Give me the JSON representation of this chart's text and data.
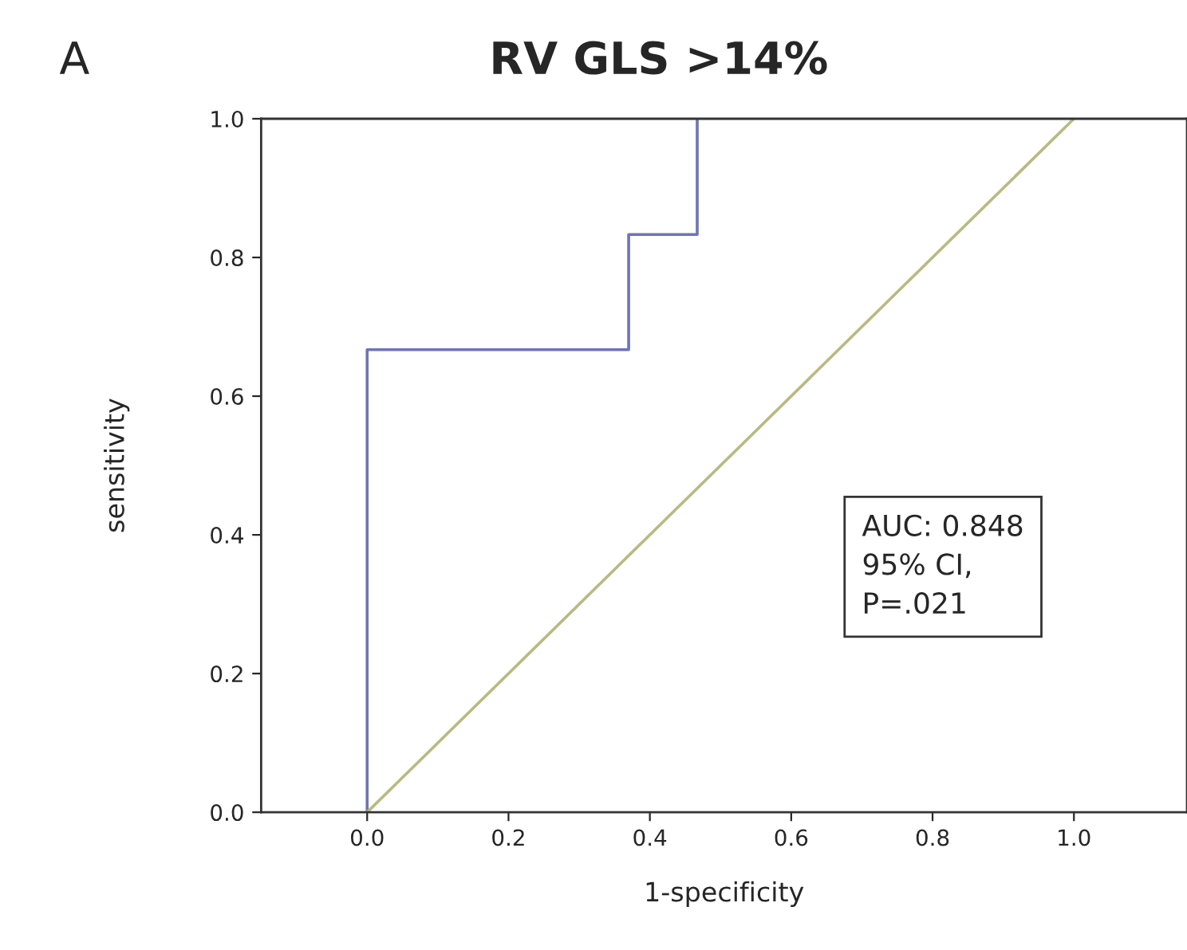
{
  "chart_data": {
    "type": "line",
    "title": "RV GLS >14%",
    "xlabel": "1-specificity",
    "ylabel": "sensitivity",
    "series": [
      {
        "x": [
          0,
          0,
          0.37,
          0.37,
          0.467,
          0.467
        ],
        "values": [
          0,
          0.667,
          0.667,
          0.833,
          0.833,
          1.0
        ],
        "color": "#6f73b8"
      },
      {
        "x": [
          0,
          1
        ],
        "values": [
          0,
          1
        ],
        "color": "#b8ba82"
      }
    ],
    "xlim": [
      -0.15,
      1.16
    ],
    "ylim": [
      0,
      1
    ],
    "xticks": [
      {
        "value": 0,
        "label": "0.0"
      },
      {
        "value": 0.2,
        "label": "0.2"
      },
      {
        "value": 0.4,
        "label": "0.4"
      },
      {
        "value": 0.6,
        "label": "0.6"
      },
      {
        "value": 0.8,
        "label": "0.8"
      },
      {
        "value": 1,
        "label": "1.0"
      }
    ],
    "yticks": [
      {
        "value": 0,
        "label": "0.0"
      },
      {
        "value": 0.2,
        "label": "0.2"
      },
      {
        "value": 0.4,
        "label": "0.4"
      },
      {
        "value": 0.6,
        "label": "0.6"
      },
      {
        "value": 0.8,
        "label": "0.8"
      },
      {
        "value": 1,
        "label": "1.0"
      }
    ],
    "annotations": [
      "A",
      "AUC: 0.848\n95% CI,\nP=.021"
    ],
    "grid": false,
    "legend": false,
    "marker": "none",
    "line_style": "solid"
  }
}
